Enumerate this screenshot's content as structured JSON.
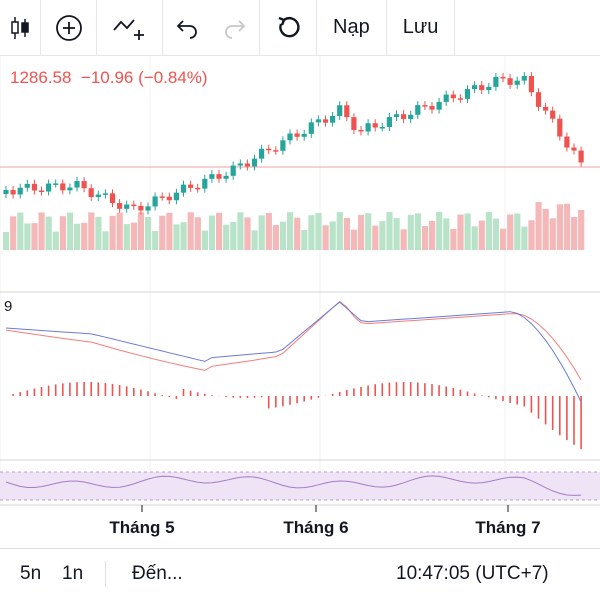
{
  "toolbar": {
    "candles_icon": "candlestick-icon",
    "add_icon": "plus-circle-icon",
    "indicator_icon": "indicator-add-icon",
    "undo_icon": "undo-icon",
    "redo_icon": "redo-icon",
    "reload_icon": "reload-icon",
    "load_label": "Nạp",
    "save_label": "Lưu"
  },
  "legend": {
    "price": "1286.58",
    "change": "−10.96",
    "change_pct": "(−0.84%)"
  },
  "macd_label": "9",
  "x_axis": {
    "labels": [
      "Tháng 5",
      "Tháng 6",
      "Tháng 7"
    ]
  },
  "bottom": {
    "range_5n": "5n",
    "range_1n": "1n",
    "goto": "Đến...",
    "clock": "10:47:05 (UTC+7)"
  },
  "colors": {
    "up": "#26a69a",
    "down": "#ef5350",
    "vol_up": "#b9e3c9",
    "vol_down": "#f5b8b8",
    "macd": "#6a7bd8",
    "signal": "#ef5350",
    "rsi_band": "#efe3f6",
    "rsi_line": "#a77bc9"
  }
}
